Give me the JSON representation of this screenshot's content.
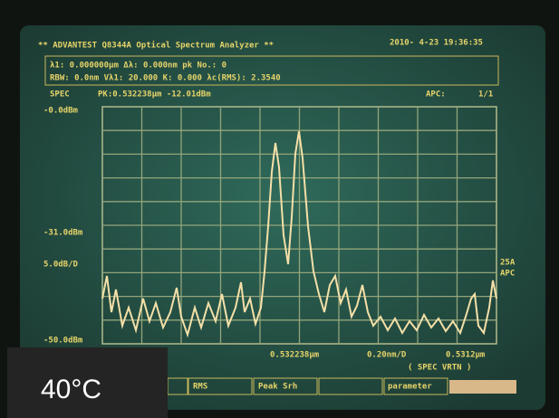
{
  "header": {
    "title": "** ADVANTEST Q8344A Optical Spectrum Analyzer **",
    "timestamp": "2010- 4-23 19:36:35"
  },
  "params": {
    "row1": "λ1: 0.000000μm  Δλ:    0.000nm  pk No.:    0",
    "row2": "RBW:  0.0nm   Vλ1: 20.000   K:    0.000  λc(RMS):  2.3540"
  },
  "status": {
    "mode": "SPEC",
    "peak": "PK:0.532238μm  -12.01dBm",
    "apc": "APC:",
    "page": "1/1"
  },
  "axis": {
    "top": "-0.0dBm",
    "mid": "-31.0dBm",
    "scale": "5.0dB/D",
    "bottom": "-50.0dBm",
    "right1": "25A",
    "right2": "APC"
  },
  "footer": {
    "center": "0.532238μm",
    "span": "0.20nm/D",
    "end": "0.5312μm",
    "state": "( SPEC VRTN )"
  },
  "buttons": [
    "RMS",
    "Peak Srh",
    "parameter"
  ],
  "overlay": {
    "temperature": "40°C"
  }
}
